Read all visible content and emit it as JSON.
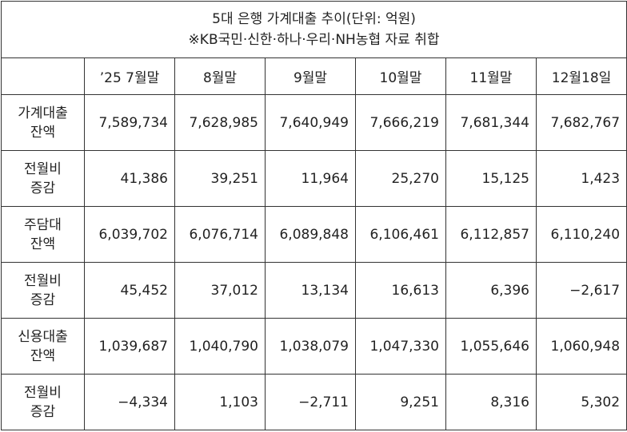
{
  "table": {
    "title": [
      "5대 은행 가계대출 추이(단위: 억원)",
      "※KB국민·신한·하나·우리·NH농협 자료 취합"
    ],
    "columns": [
      "’25 7월말",
      "8월말",
      "9월말",
      "10월말",
      "11월말",
      "12월18일"
    ],
    "rows": [
      {
        "label": [
          "가계대출",
          "잔액"
        ],
        "cells": [
          "7,589,734",
          "7,628,985",
          "7,640,949",
          "7,666,219",
          "7,681,344",
          "7,682,767"
        ]
      },
      {
        "label": [
          "전월비",
          "증감"
        ],
        "cells": [
          "41,386",
          "39,251",
          "11,964",
          "25,270",
          "15,125",
          "1,423"
        ]
      },
      {
        "label": [
          "주담대",
          "잔액"
        ],
        "cells": [
          "6,039,702",
          "6,076,714",
          "6,089,848",
          "6,106,461",
          "6,112,857",
          "6,110,240"
        ]
      },
      {
        "label": [
          "전월비",
          "증감"
        ],
        "cells": [
          "45,452",
          "37,012",
          "13,134",
          "16,613",
          "6,396",
          "−2,617"
        ]
      },
      {
        "label": [
          "신용대출",
          "잔액"
        ],
        "cells": [
          "1,039,687",
          "1,040,790",
          "1,038,079",
          "1,047,330",
          "1,055,646",
          "1,060,948"
        ]
      },
      {
        "label": [
          "전월비",
          "증감"
        ],
        "cells": [
          "−4,334",
          "1,103",
          "−2,711",
          "9,251",
          "8,316",
          "5,302"
        ]
      }
    ]
  }
}
